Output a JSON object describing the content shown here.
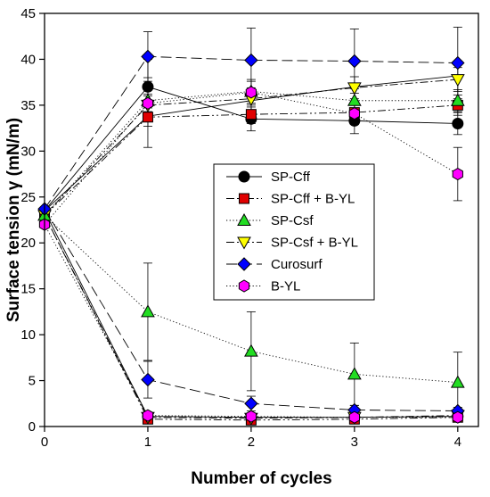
{
  "chart_data": {
    "type": "line",
    "xlabel": "Number of cycles",
    "ylabel": "Surface tension γ (mN/m)",
    "xlim": [
      0,
      4.2
    ],
    "ylim": [
      0,
      45
    ],
    "xticks": [
      0,
      1,
      2,
      3,
      4
    ],
    "yticks": [
      0,
      5,
      10,
      15,
      20,
      25,
      30,
      35,
      40,
      45
    ],
    "grid": false,
    "legend_position": "center",
    "x": [
      0,
      1,
      2,
      3,
      4
    ],
    "series": [
      {
        "name": "SP-Cff",
        "marker": "circle",
        "color": "#000000",
        "line_style": "solid",
        "max": [
          23.5,
          37.0,
          33.5,
          33.3,
          33.0
        ],
        "max_err": [
          null,
          1.0,
          1.3,
          1.4,
          1.2
        ],
        "min": [
          23.5,
          1.1,
          1.0,
          1.0,
          1.1
        ],
        "min_err": [
          null,
          0.3,
          0.3,
          0.3,
          0.3
        ],
        "max_trend": [
          23.5,
          33.8,
          35.5,
          37.0,
          38.2
        ]
      },
      {
        "name": "SP-Cff + B-YL",
        "marker": "square",
        "color": "#e00000",
        "line_style": "dash-dot-dot",
        "max": [
          23.0,
          33.7,
          34.0,
          34.2,
          35.0
        ],
        "max_err": [
          null,
          1.0,
          1.0,
          1.0,
          1.1
        ],
        "min": [
          23.0,
          0.8,
          0.7,
          0.8,
          1.0
        ],
        "min_err": [
          null,
          0.2,
          0.2,
          0.2,
          0.2
        ]
      },
      {
        "name": "SP-Csf",
        "marker": "triangle-up",
        "color": "#22dd22",
        "line_style": "dotted",
        "max": [
          23.0,
          35.5,
          36.5,
          35.5,
          35.5
        ],
        "max_err": [
          null,
          1.2,
          1.3,
          1.3,
          1.2
        ],
        "min": [
          23.0,
          12.5,
          8.2,
          5.7,
          4.8
        ],
        "min_err": [
          null,
          5.3,
          4.3,
          3.4,
          3.3
        ]
      },
      {
        "name": "SP-Csf + B-YL",
        "marker": "triangle-down",
        "color": "#ffff00",
        "line_style": "dash-dot",
        "max": [
          23.0,
          35.0,
          35.7,
          36.9,
          37.8
        ],
        "max_err": [
          null,
          1.2,
          1.2,
          1.2,
          1.3
        ],
        "min": [
          23.0,
          1.0,
          0.9,
          1.0,
          1.2
        ],
        "min_err": [
          null,
          0.3,
          0.3,
          0.3,
          0.3
        ]
      },
      {
        "name": "Curosurf",
        "marker": "diamond",
        "color": "#0000ff",
        "line_style": "long-dash",
        "max": [
          23.7,
          40.3,
          39.9,
          39.8,
          39.6
        ],
        "max_err": [
          null,
          2.7,
          3.5,
          3.5,
          3.9
        ],
        "min": [
          23.7,
          5.1,
          2.5,
          1.8,
          1.7
        ],
        "min_err": [
          null,
          2.0,
          0.8,
          0.5,
          0.4
        ]
      },
      {
        "name": "B-YL",
        "marker": "hexagon",
        "color": "#ff00ff",
        "line_style": "dotted",
        "max": [
          22.0,
          35.2,
          36.4,
          34.1,
          27.5
        ],
        "max_err": [
          null,
          4.8,
          1.2,
          1.2,
          2.9
        ],
        "min": [
          22.0,
          1.2,
          1.1,
          1.0,
          1.0
        ],
        "min_err": [
          null,
          0.3,
          0.3,
          0.3,
          0.3
        ]
      }
    ]
  }
}
